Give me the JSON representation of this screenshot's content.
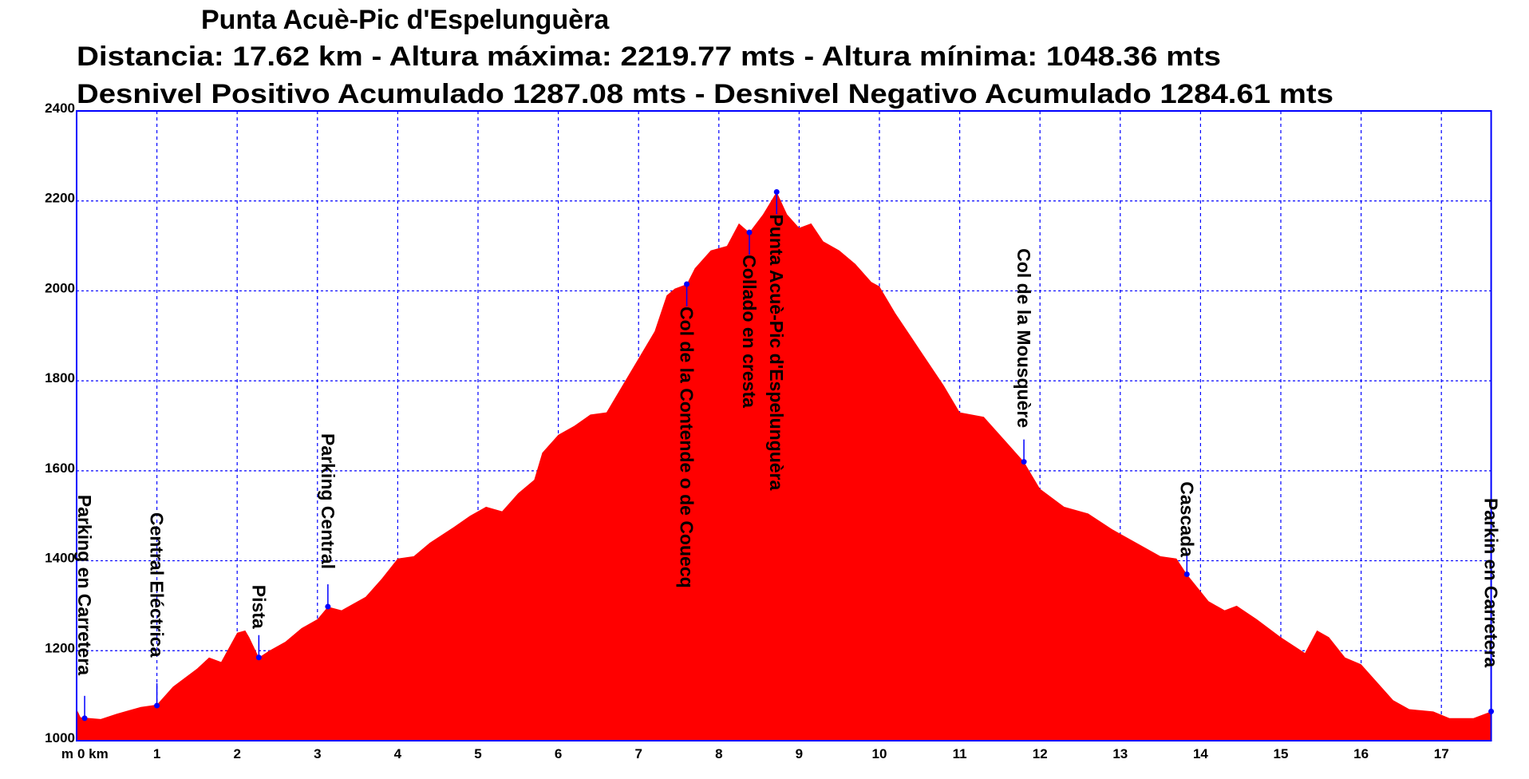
{
  "chart_data": {
    "type": "area",
    "title": "Punta Acuè-Pic d'Espelunguèra",
    "subtitle_1": "Distancia: 17.62 km - Altura máxima: 2219.77 mts - Altura mínima: 1048.36 mts",
    "subtitle_2": "Desnivel Positivo Acumulado 1287.08 mts - Desnivel Negativo Acumulado 1284.61 mts",
    "xlabel": "km",
    "ylabel": "m",
    "x_first_tick_label": "0 km",
    "xlim": [
      0,
      17.62
    ],
    "ylim": [
      1000,
      2400
    ],
    "xticks": [
      0,
      1,
      2,
      3,
      4,
      5,
      6,
      7,
      8,
      9,
      10,
      11,
      12,
      13,
      14,
      15,
      16,
      17
    ],
    "yticks": [
      1000,
      1200,
      1400,
      1600,
      1800,
      2000,
      2200,
      2400
    ],
    "grid": true,
    "colors": {
      "fill": "#ff0000",
      "grid": "#0000ff",
      "marker": "#0000ff",
      "text": "#000000"
    },
    "profile": [
      [
        0,
        1070
      ],
      [
        0.05,
        1052
      ],
      [
        0.3,
        1048
      ],
      [
        0.5,
        1060
      ],
      [
        0.8,
        1075
      ],
      [
        1.0,
        1080
      ],
      [
        1.2,
        1120
      ],
      [
        1.5,
        1160
      ],
      [
        1.65,
        1185
      ],
      [
        1.8,
        1175
      ],
      [
        2.0,
        1240
      ],
      [
        2.1,
        1245
      ],
      [
        2.15,
        1230
      ],
      [
        2.27,
        1185
      ],
      [
        2.4,
        1200
      ],
      [
        2.6,
        1220
      ],
      [
        2.8,
        1250
      ],
      [
        3.0,
        1270
      ],
      [
        3.13,
        1298
      ],
      [
        3.3,
        1290
      ],
      [
        3.6,
        1320
      ],
      [
        3.8,
        1360
      ],
      [
        4.0,
        1405
      ],
      [
        4.2,
        1410
      ],
      [
        4.4,
        1440
      ],
      [
        4.7,
        1475
      ],
      [
        4.9,
        1500
      ],
      [
        5.1,
        1520
      ],
      [
        5.3,
        1510
      ],
      [
        5.5,
        1550
      ],
      [
        5.7,
        1580
      ],
      [
        5.8,
        1640
      ],
      [
        6.0,
        1680
      ],
      [
        6.2,
        1700
      ],
      [
        6.4,
        1725
      ],
      [
        6.6,
        1730
      ],
      [
        6.8,
        1790
      ],
      [
        7.0,
        1850
      ],
      [
        7.2,
        1910
      ],
      [
        7.35,
        1990
      ],
      [
        7.45,
        2005
      ],
      [
        7.6,
        2015
      ],
      [
        7.7,
        2050
      ],
      [
        7.9,
        2090
      ],
      [
        8.1,
        2100
      ],
      [
        8.25,
        2150
      ],
      [
        8.38,
        2130
      ],
      [
        8.55,
        2170
      ],
      [
        8.72,
        2220
      ],
      [
        8.85,
        2170
      ],
      [
        9.0,
        2140
      ],
      [
        9.15,
        2150
      ],
      [
        9.3,
        2110
      ],
      [
        9.5,
        2090
      ],
      [
        9.7,
        2060
      ],
      [
        9.9,
        2020
      ],
      [
        10.0,
        2010
      ],
      [
        10.2,
        1950
      ],
      [
        10.5,
        1870
      ],
      [
        10.8,
        1790
      ],
      [
        11.0,
        1730
      ],
      [
        11.3,
        1720
      ],
      [
        11.6,
        1660
      ],
      [
        11.8,
        1620
      ],
      [
        12.0,
        1560
      ],
      [
        12.3,
        1520
      ],
      [
        12.6,
        1505
      ],
      [
        12.9,
        1470
      ],
      [
        13.2,
        1440
      ],
      [
        13.5,
        1410
      ],
      [
        13.7,
        1405
      ],
      [
        13.83,
        1370
      ],
      [
        14.1,
        1310
      ],
      [
        14.3,
        1290
      ],
      [
        14.45,
        1300
      ],
      [
        14.7,
        1270
      ],
      [
        15.0,
        1230
      ],
      [
        15.3,
        1195
      ],
      [
        15.45,
        1245
      ],
      [
        15.6,
        1230
      ],
      [
        15.8,
        1185
      ],
      [
        16.0,
        1170
      ],
      [
        16.2,
        1130
      ],
      [
        16.4,
        1090
      ],
      [
        16.6,
        1070
      ],
      [
        16.9,
        1065
      ],
      [
        17.1,
        1050
      ],
      [
        17.4,
        1050
      ],
      [
        17.62,
        1065
      ]
    ],
    "waypoints": [
      {
        "name": "Parking en Carretera",
        "km": 0.1,
        "elevation": 1050,
        "label_side": "above"
      },
      {
        "name": "Central Eléctrica",
        "km": 1.0,
        "elevation": 1078,
        "label_side": "above"
      },
      {
        "name": "Pista",
        "km": 2.27,
        "elevation": 1185,
        "label_side": "above"
      },
      {
        "name": "Parking Central",
        "km": 3.13,
        "elevation": 1298,
        "label_side": "above"
      },
      {
        "name": "Col de la Contende o de Couecq",
        "km": 7.6,
        "elevation": 2015,
        "label_side": "below"
      },
      {
        "name": "Collado en cresta",
        "km": 8.38,
        "elevation": 2130,
        "label_side": "below"
      },
      {
        "name": "Punta Acuè-Pic d'Espelunguèra",
        "km": 8.72,
        "elevation": 2220,
        "label_side": "below"
      },
      {
        "name": "Col de la Mousquère",
        "km": 11.8,
        "elevation": 1620,
        "label_side": "above"
      },
      {
        "name": "Cascada",
        "km": 13.83,
        "elevation": 1370,
        "label_side": "above"
      },
      {
        "name": "Parkin en Carretera",
        "km": 17.62,
        "elevation": 1065,
        "label_side": "above"
      }
    ]
  }
}
